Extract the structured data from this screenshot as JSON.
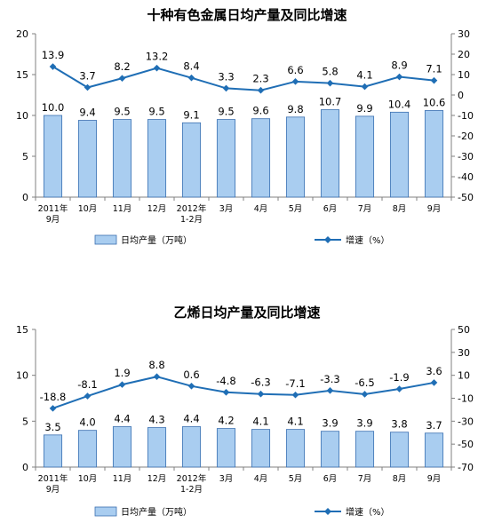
{
  "colors": {
    "bar_fill": "#a9cdf0",
    "bar_stroke": "#3a6fb0",
    "line": "#1f6eb5",
    "axis": "#808080"
  },
  "chart_data": [
    {
      "type": "bar",
      "title": "十种有色金属日均产量及同比增速",
      "categories": [
        "2011年\n9月",
        "10月",
        "11月",
        "12月",
        "2012年\n1-2月",
        "3月",
        "4月",
        "5月",
        "6月",
        "7月",
        "8月",
        "9月"
      ],
      "series": [
        {
          "name": "日均产量（万吨）",
          "type": "bar",
          "axis": "left",
          "values": [
            10.0,
            9.4,
            9.5,
            9.5,
            9.1,
            9.5,
            9.6,
            9.8,
            10.7,
            9.9,
            10.4,
            10.6
          ]
        },
        {
          "name": "增速（%）",
          "type": "line",
          "axis": "right",
          "values": [
            13.9,
            3.7,
            8.2,
            13.2,
            8.4,
            3.3,
            2.3,
            6.6,
            5.8,
            4.1,
            8.9,
            7.1
          ]
        }
      ],
      "ylim_left": [
        0,
        20
      ],
      "yticks_left": [
        "0",
        "5",
        "10",
        "15",
        "20"
      ],
      "ylim_right": [
        -50,
        30
      ],
      "yticks_right": [
        "-50",
        "-40",
        "-30",
        "-20",
        "-10",
        "0",
        "10",
        "20",
        "30"
      ],
      "bar_labels": [
        "10.0",
        "9.4",
        "9.5",
        "9.5",
        "9.1",
        "9.5",
        "9.6",
        "9.8",
        "10.7",
        "9.9",
        "10.4",
        "10.6"
      ],
      "line_labels": [
        "13.9",
        "3.7",
        "8.2",
        "13.2",
        "8.4",
        "3.3",
        "2.3",
        "6.6",
        "5.8",
        "4.1",
        "8.9",
        "7.1"
      ],
      "legend": {
        "bar": "日均产量（万吨）",
        "line": "增速（%）",
        "position": "bottom"
      },
      "grid": false
    },
    {
      "type": "bar",
      "title": "乙烯日均产量及同比增速",
      "categories": [
        "2011年\n9月",
        "10月",
        "11月",
        "12月",
        "2012年\n1-2月",
        "3月",
        "4月",
        "5月",
        "6月",
        "7月",
        "8月",
        "9月"
      ],
      "series": [
        {
          "name": "日均产量（万吨）",
          "type": "bar",
          "axis": "left",
          "values": [
            3.5,
            4.0,
            4.4,
            4.3,
            4.4,
            4.2,
            4.1,
            4.1,
            3.9,
            3.9,
            3.8,
            3.7
          ]
        },
        {
          "name": "增速（%）",
          "type": "line",
          "axis": "right",
          "values": [
            -18.8,
            -8.1,
            1.9,
            8.8,
            0.6,
            -4.8,
            -6.3,
            -7.1,
            -3.3,
            -6.5,
            -1.9,
            3.6
          ]
        }
      ],
      "ylim_left": [
        0,
        15
      ],
      "yticks_left": [
        "0",
        "5",
        "10",
        "15"
      ],
      "ylim_right": [
        -70,
        50
      ],
      "yticks_right": [
        "-70",
        "-50",
        "-30",
        "-10",
        "10",
        "30",
        "50"
      ],
      "bar_labels": [
        "3.5",
        "4.0",
        "4.4",
        "4.3",
        "4.4",
        "4.2",
        "4.1",
        "4.1",
        "3.9",
        "3.9",
        "3.8",
        "3.7"
      ],
      "line_labels": [
        "-18.8",
        "-8.1",
        "1.9",
        "8.8",
        "0.6",
        "-4.8",
        "-6.3",
        "-7.1",
        "-3.3",
        "-6.5",
        "-1.9",
        "3.6"
      ],
      "legend": {
        "bar": "日均产量（万吨）",
        "line": "增速（%）",
        "position": "bottom"
      },
      "grid": false
    }
  ]
}
